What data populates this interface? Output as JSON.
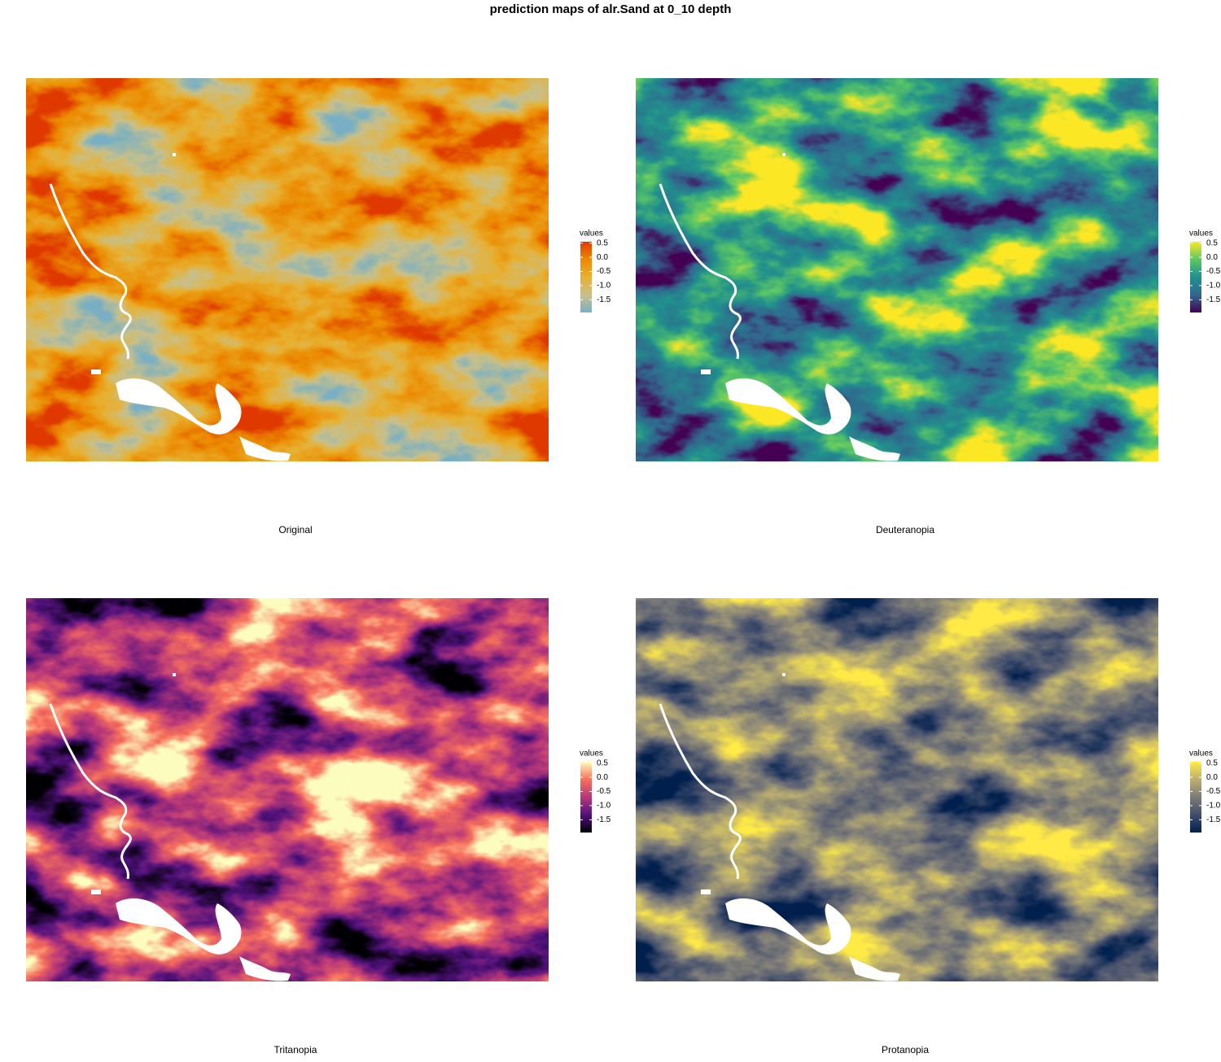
{
  "title": "prediction maps of alr.Sand at 0_10 depth",
  "panels": [
    {
      "caption": "Original",
      "legend": {
        "title": "values",
        "lim": [
          -1.95,
          0.55
        ],
        "ticks": [
          0.5,
          {
            "value": 0,
            "label": "0.0"
          },
          -0.5,
          {
            "value": -1,
            "label": "-1.0"
          },
          -1.5
        ],
        "colors": [
          "#78b0c4",
          "#c9c08a",
          "#e8b030",
          "#ec8a00",
          "#e03a00"
        ]
      }
    },
    {
      "caption": "Deuteranopia",
      "legend": {
        "title": "values",
        "lim": [
          -1.95,
          0.55
        ],
        "ticks": [
          0.5,
          {
            "value": 0,
            "label": "0.0"
          },
          -0.5,
          {
            "value": -1,
            "label": "-1.0"
          },
          -1.5
        ],
        "colors": [
          "#440154",
          "#31688e",
          "#21908d",
          "#5dc863",
          "#fde725"
        ]
      }
    },
    {
      "caption": "Tritanopia",
      "legend": {
        "title": "values",
        "lim": [
          -1.95,
          0.55
        ],
        "ticks": [
          0.5,
          {
            "value": 0,
            "label": "0.0"
          },
          -0.5,
          {
            "value": -1,
            "label": "-1.0"
          },
          -1.5
        ],
        "colors": [
          "#000004",
          "#51127c",
          "#b73779",
          "#f7705c",
          "#fcfdbf"
        ]
      }
    },
    {
      "caption": "Protanopia",
      "legend": {
        "title": "values",
        "lim": [
          -1.95,
          0.55
        ],
        "ticks": [
          0.5,
          {
            "value": 0,
            "label": "0.0"
          },
          -0.5,
          {
            "value": -1,
            "label": "-1.0"
          },
          -1.5
        ],
        "colors": [
          "#00204d",
          "#414d6b",
          "#7c7b78",
          "#bcaf6f",
          "#ffea46"
        ]
      }
    }
  ]
}
